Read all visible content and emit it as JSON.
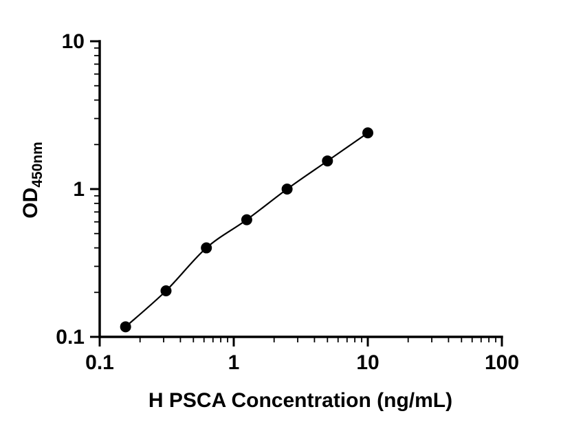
{
  "chart_data": {
    "type": "scatter",
    "x": [
      0.156,
      0.3125,
      0.625,
      1.25,
      2.5,
      5,
      10
    ],
    "y": [
      0.117,
      0.205,
      0.4,
      0.62,
      1.0,
      1.55,
      2.4
    ],
    "xlabel": "H PSCA Concentration (ng/mL)",
    "ylabel_main": "OD",
    "ylabel_sub": "450nm",
    "x_scale": "log",
    "y_scale": "log",
    "xlim": [
      0.1,
      100
    ],
    "ylim": [
      0.1,
      10
    ],
    "x_ticks": [
      0.1,
      1,
      10,
      100
    ],
    "y_ticks": [
      0.1,
      1,
      10
    ],
    "x_tick_labels": [
      "0.1",
      "1",
      "10",
      "100"
    ],
    "y_tick_labels": [
      "0.1",
      "1",
      "10"
    ],
    "grid": false,
    "legend": "none",
    "marker_color": "#000000",
    "line_color": "#000000",
    "background_color": "#ffffff"
  }
}
